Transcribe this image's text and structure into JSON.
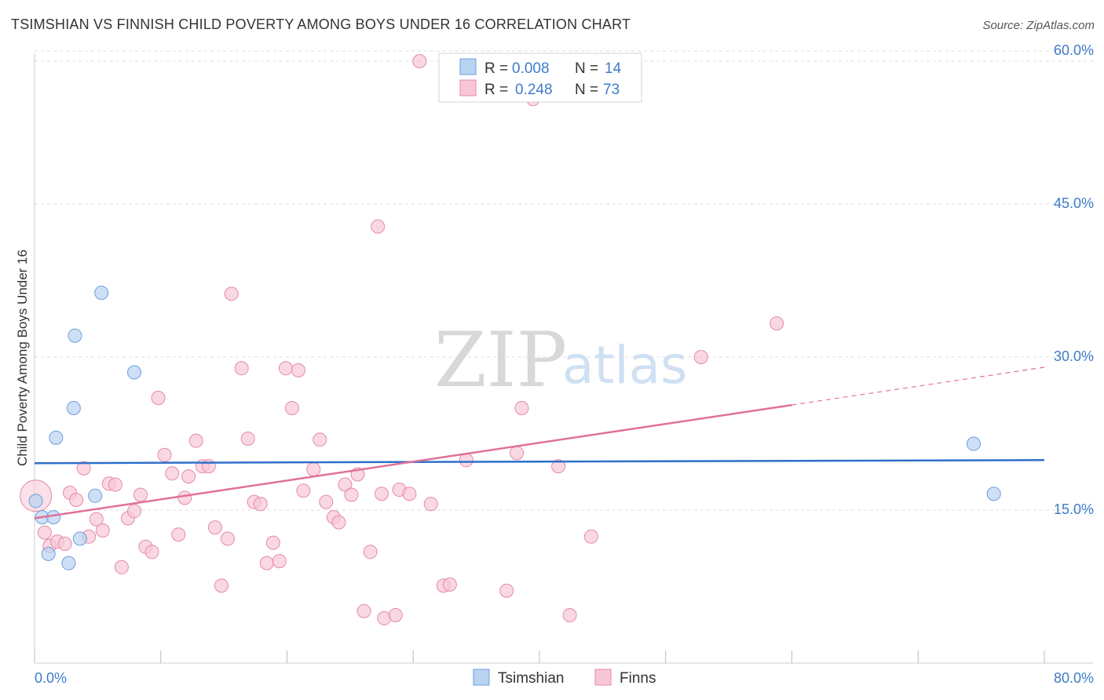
{
  "title": "TSIMSHIAN VS FINNISH CHILD POVERTY AMONG BOYS UNDER 16 CORRELATION CHART",
  "source": "Source: ZipAtlas.com",
  "watermark": {
    "zip": "ZIP",
    "atlas": "atlas"
  },
  "colors": {
    "blue_fill": "#b9d3f2",
    "blue_stroke": "#6d9fd9",
    "blue_line": "#2f6fc9",
    "pink_fill": "#f8c7d6",
    "pink_stroke": "#e58aa8",
    "pink_line": "#e0709a",
    "grid": "#dddddd",
    "axis_text": "#3d7cc9"
  },
  "legend": {
    "rows": [
      {
        "r_label": "R = ",
        "r_value": "0.008",
        "n_label": "N = ",
        "n_value": "14"
      },
      {
        "r_label": "R = ",
        "r_value": "0.248",
        "n_label": "N = ",
        "n_value": "73"
      }
    ]
  },
  "bottom_legend": [
    "Tsimshian",
    "Finns"
  ],
  "chart_data": {
    "type": "scatter",
    "title": "TSIMSHIAN VS FINNISH CHILD POVERTY AMONG BOYS UNDER 16 CORRELATION CHART",
    "xlabel": "",
    "ylabel": "Child Poverty Among Boys Under 16",
    "xlim": [
      0,
      80
    ],
    "ylim": [
      0,
      62
    ],
    "x_tick_labels": [
      "0.0%",
      "80.0%"
    ],
    "y_ticks": [
      15,
      30,
      45,
      60
    ],
    "y_tick_labels": [
      "15.0%",
      "30.0%",
      "45.0%",
      "60.0%"
    ],
    "grid": true,
    "series": [
      {
        "name": "Tsimshian",
        "r": 0.008,
        "n": 14,
        "trend": {
          "x": [
            0,
            80
          ],
          "y": [
            19.6,
            19.9
          ]
        },
        "points": [
          {
            "x": 0.1,
            "y": 15.9
          },
          {
            "x": 0.6,
            "y": 14.3
          },
          {
            "x": 1.1,
            "y": 10.7
          },
          {
            "x": 1.5,
            "y": 14.3
          },
          {
            "x": 1.7,
            "y": 22.1
          },
          {
            "x": 2.7,
            "y": 9.8
          },
          {
            "x": 3.1,
            "y": 25.0
          },
          {
            "x": 3.2,
            "y": 32.1
          },
          {
            "x": 3.6,
            "y": 12.2
          },
          {
            "x": 4.8,
            "y": 16.4
          },
          {
            "x": 5.3,
            "y": 36.3
          },
          {
            "x": 7.9,
            "y": 28.5
          },
          {
            "x": 74.4,
            "y": 21.5
          },
          {
            "x": 76.0,
            "y": 16.6
          }
        ]
      },
      {
        "name": "Finns",
        "r": 0.248,
        "n": 73,
        "trend": {
          "x": [
            0,
            60
          ],
          "y": [
            14.2,
            25.3
          ]
        },
        "trend_dashed": {
          "x": [
            60,
            80
          ],
          "y": [
            25.3,
            29.0
          ]
        },
        "points": [
          {
            "x": 0.1,
            "y": 16.4
          },
          {
            "x": 0.8,
            "y": 12.8
          },
          {
            "x": 1.2,
            "y": 11.5
          },
          {
            "x": 1.8,
            "y": 11.9
          },
          {
            "x": 2.4,
            "y": 11.7
          },
          {
            "x": 2.8,
            "y": 16.7
          },
          {
            "x": 3.3,
            "y": 16.0
          },
          {
            "x": 3.9,
            "y": 19.1
          },
          {
            "x": 4.3,
            "y": 12.4
          },
          {
            "x": 4.9,
            "y": 14.1
          },
          {
            "x": 5.4,
            "y": 13.0
          },
          {
            "x": 5.9,
            "y": 17.6
          },
          {
            "x": 6.4,
            "y": 17.5
          },
          {
            "x": 6.9,
            "y": 9.4
          },
          {
            "x": 7.4,
            "y": 14.2
          },
          {
            "x": 7.9,
            "y": 14.9
          },
          {
            "x": 8.4,
            "y": 16.5
          },
          {
            "x": 8.8,
            "y": 11.4
          },
          {
            "x": 9.3,
            "y": 10.9
          },
          {
            "x": 9.8,
            "y": 26.0
          },
          {
            "x": 10.3,
            "y": 20.4
          },
          {
            "x": 10.9,
            "y": 18.6
          },
          {
            "x": 11.4,
            "y": 12.6
          },
          {
            "x": 11.9,
            "y": 16.2
          },
          {
            "x": 12.2,
            "y": 18.3
          },
          {
            "x": 12.8,
            "y": 21.8
          },
          {
            "x": 13.3,
            "y": 19.3
          },
          {
            "x": 13.8,
            "y": 19.3
          },
          {
            "x": 14.3,
            "y": 13.3
          },
          {
            "x": 14.8,
            "y": 7.6
          },
          {
            "x": 15.3,
            "y": 12.2
          },
          {
            "x": 15.6,
            "y": 36.2
          },
          {
            "x": 16.4,
            "y": 28.9
          },
          {
            "x": 16.9,
            "y": 22.0
          },
          {
            "x": 17.4,
            "y": 15.8
          },
          {
            "x": 17.9,
            "y": 15.6
          },
          {
            "x": 18.4,
            "y": 9.8
          },
          {
            "x": 18.9,
            "y": 11.8
          },
          {
            "x": 19.4,
            "y": 10.0
          },
          {
            "x": 19.9,
            "y": 28.9
          },
          {
            "x": 20.4,
            "y": 25.0
          },
          {
            "x": 20.9,
            "y": 28.7
          },
          {
            "x": 21.3,
            "y": 16.9
          },
          {
            "x": 22.1,
            "y": 19.0
          },
          {
            "x": 22.6,
            "y": 21.9
          },
          {
            "x": 23.1,
            "y": 15.8
          },
          {
            "x": 23.7,
            "y": 14.3
          },
          {
            "x": 24.1,
            "y": 13.8
          },
          {
            "x": 24.6,
            "y": 17.5
          },
          {
            "x": 25.1,
            "y": 16.5
          },
          {
            "x": 25.6,
            "y": 18.5
          },
          {
            "x": 26.1,
            "y": 5.1
          },
          {
            "x": 26.6,
            "y": 10.9
          },
          {
            "x": 27.2,
            "y": 42.8
          },
          {
            "x": 27.5,
            "y": 16.6
          },
          {
            "x": 27.7,
            "y": 4.4
          },
          {
            "x": 28.6,
            "y": 4.7
          },
          {
            "x": 28.9,
            "y": 17.0
          },
          {
            "x": 29.7,
            "y": 16.6
          },
          {
            "x": 30.5,
            "y": 59.0
          },
          {
            "x": 31.4,
            "y": 15.6
          },
          {
            "x": 32.4,
            "y": 7.6
          },
          {
            "x": 32.9,
            "y": 7.7
          },
          {
            "x": 34.2,
            "y": 19.9
          },
          {
            "x": 37.4,
            "y": 7.1
          },
          {
            "x": 38.2,
            "y": 20.6
          },
          {
            "x": 38.6,
            "y": 25.0
          },
          {
            "x": 39.5,
            "y": 55.3
          },
          {
            "x": 41.5,
            "y": 19.3
          },
          {
            "x": 42.4,
            "y": 4.7
          },
          {
            "x": 44.1,
            "y": 12.4
          },
          {
            "x": 52.8,
            "y": 30.0
          },
          {
            "x": 58.8,
            "y": 33.3
          }
        ]
      }
    ]
  }
}
